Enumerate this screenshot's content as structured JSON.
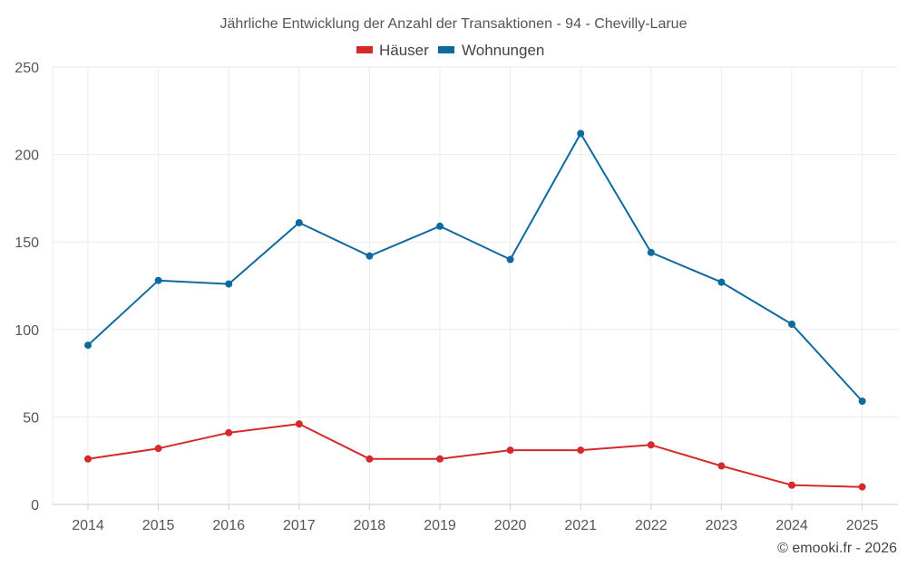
{
  "chart_data": {
    "type": "line",
    "title": "Jährliche Entwicklung der Anzahl der Transaktionen - 94 - Chevilly-Larue",
    "xlabel": "",
    "ylabel": "",
    "categories": [
      "2014",
      "2015",
      "2016",
      "2017",
      "2018",
      "2019",
      "2020",
      "2021",
      "2022",
      "2023",
      "2024",
      "2025"
    ],
    "ylim": [
      0,
      250
    ],
    "yticks": [
      0,
      50,
      100,
      150,
      200,
      250
    ],
    "grid": true,
    "legend_position": "top-center",
    "series": [
      {
        "name": "Häuser",
        "color": "#d42a2a",
        "values": [
          26,
          32,
          41,
          46,
          26,
          26,
          31,
          31,
          34,
          22,
          11,
          10
        ]
      },
      {
        "name": "Wohnungen",
        "color": "#0e6a9e",
        "values": [
          91,
          128,
          126,
          161,
          142,
          159,
          140,
          212,
          144,
          127,
          103,
          59
        ]
      }
    ]
  },
  "copyright": "© emooki.fr - 2026"
}
